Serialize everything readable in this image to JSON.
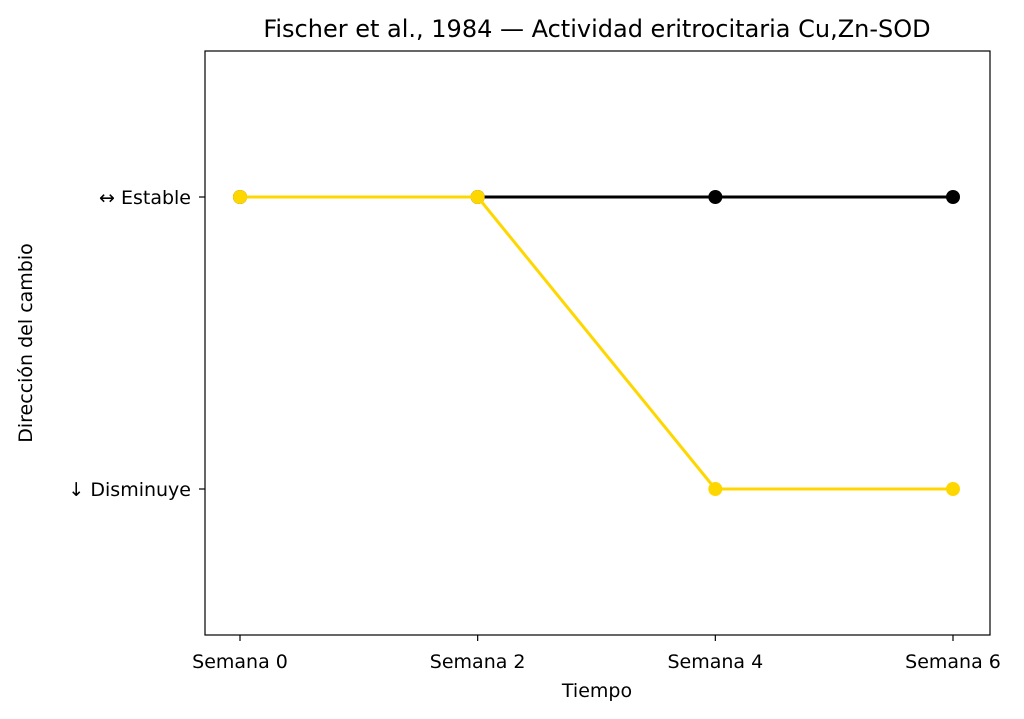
{
  "chart_data": {
    "type": "line",
    "title": "Fischer et al., 1984 — Actividad eritrocitaria Cu,Zn-SOD",
    "xlabel": "Tiempo",
    "ylabel": "Dirección del cambio",
    "categories": [
      "Semana 0",
      "Semana 2",
      "Semana 4",
      "Semana 6"
    ],
    "y_ticks": [
      {
        "value": -1,
        "label": "↓ Disminuye"
      },
      {
        "value": 0,
        "label": "↔ Estable"
      }
    ],
    "ylim": [
      -1.5,
      0.5
    ],
    "grid": false,
    "series": [
      {
        "color": "#000000",
        "values": [
          0,
          0,
          0,
          0
        ]
      },
      {
        "color": "#FFD700",
        "values": [
          0,
          0,
          -1,
          -1
        ]
      }
    ]
  }
}
